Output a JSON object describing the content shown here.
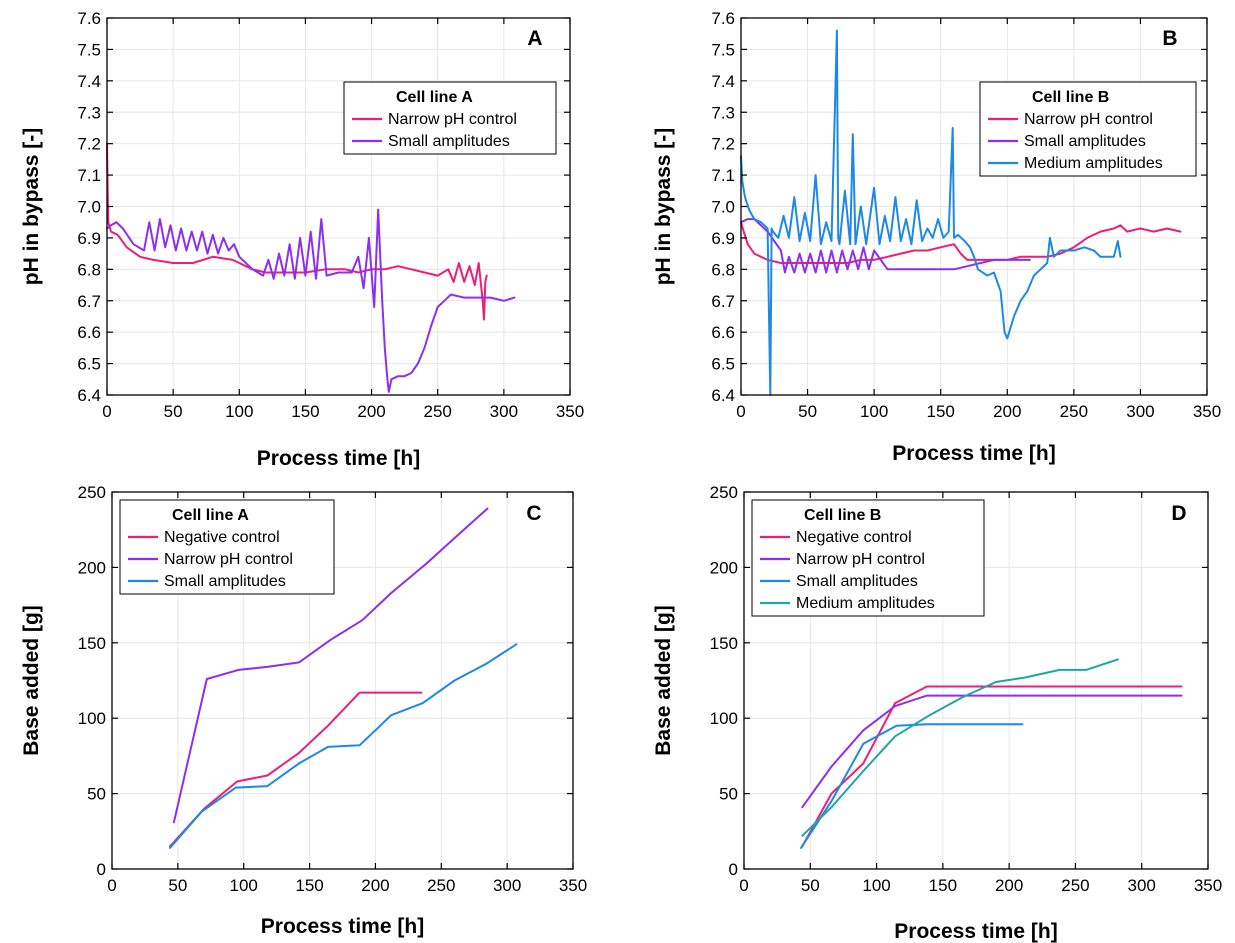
{
  "colors": {
    "pink": "#ec1e77",
    "purple": "#8c2ff0",
    "blue": "#1e88e5",
    "teal": "#1aa8a0"
  },
  "chart_data": [
    {
      "id": "A",
      "type": "line",
      "panel_label": "A",
      "xlabel": "Process time [h]",
      "ylabel": "pH in bypass [-]",
      "xlim": [
        0,
        350
      ],
      "ylim": [
        6.4,
        7.6
      ],
      "xticks": [
        0,
        50,
        100,
        150,
        200,
        250,
        300,
        350
      ],
      "yticks": [
        6.4,
        6.5,
        6.6,
        6.7,
        6.8,
        6.9,
        7.0,
        7.1,
        7.2,
        7.3,
        7.4,
        7.5,
        7.6
      ],
      "ytick_decimals": 1,
      "grid": true,
      "legend_title": "Cell line A",
      "legend_position": "upper-right",
      "series": [
        {
          "name": "Narrow pH control",
          "color": "#ec1e77",
          "x": [
            0,
            0.5,
            1,
            3,
            8,
            15,
            25,
            35,
            50,
            65,
            80,
            95,
            110,
            120,
            135,
            150,
            165,
            180,
            190,
            200,
            210,
            220,
            230,
            240,
            250,
            258,
            262,
            266,
            270,
            274,
            278,
            281,
            284,
            285,
            286,
            287
          ],
          "y": [
            7.2,
            7.05,
            6.95,
            6.92,
            6.91,
            6.87,
            6.84,
            6.83,
            6.82,
            6.82,
            6.84,
            6.83,
            6.8,
            6.79,
            6.79,
            6.79,
            6.8,
            6.8,
            6.79,
            6.8,
            6.8,
            6.81,
            6.8,
            6.79,
            6.78,
            6.8,
            6.76,
            6.82,
            6.76,
            6.81,
            6.75,
            6.82,
            6.7,
            6.64,
            6.76,
            6.78
          ]
        },
        {
          "name": "Small amplitudes",
          "color": "#8c2ff0",
          "x": [
            0,
            3,
            7,
            12,
            20,
            28,
            32,
            36,
            40,
            44,
            48,
            52,
            56,
            60,
            64,
            68,
            72,
            76,
            80,
            84,
            88,
            92,
            96,
            100,
            110,
            118,
            122,
            126,
            130,
            134,
            138,
            142,
            146,
            150,
            154,
            158,
            162,
            166,
            175,
            185,
            190,
            194,
            198,
            202,
            205,
            208,
            210,
            212,
            213,
            215,
            220,
            225,
            230,
            235,
            240,
            245,
            250,
            255,
            260,
            270,
            280,
            290,
            300,
            308
          ],
          "y": [
            6.93,
            6.94,
            6.95,
            6.93,
            6.88,
            6.86,
            6.95,
            6.86,
            6.96,
            6.87,
            6.94,
            6.86,
            6.93,
            6.86,
            6.92,
            6.86,
            6.92,
            6.85,
            6.91,
            6.85,
            6.9,
            6.86,
            6.88,
            6.84,
            6.8,
            6.78,
            6.83,
            6.77,
            6.85,
            6.78,
            6.88,
            6.77,
            6.9,
            6.78,
            6.92,
            6.77,
            6.96,
            6.78,
            6.79,
            6.79,
            6.84,
            6.74,
            6.9,
            6.68,
            6.99,
            6.7,
            6.55,
            6.45,
            6.41,
            6.45,
            6.46,
            6.46,
            6.47,
            6.5,
            6.55,
            6.62,
            6.68,
            6.7,
            6.72,
            6.71,
            6.71,
            6.71,
            6.7,
            6.71
          ]
        }
      ]
    },
    {
      "id": "B",
      "type": "line",
      "panel_label": "B",
      "xlabel": "Process time [h]",
      "ylabel": "pH in bypass [-]",
      "xlim": [
        0,
        350
      ],
      "ylim": [
        6.4,
        7.6
      ],
      "xticks": [
        0,
        50,
        100,
        150,
        200,
        250,
        300,
        350
      ],
      "yticks": [
        6.4,
        6.5,
        6.6,
        6.7,
        6.8,
        6.9,
        7.0,
        7.1,
        7.2,
        7.3,
        7.4,
        7.5,
        7.6
      ],
      "ytick_decimals": 1,
      "grid": true,
      "legend_title": "Cell line B",
      "legend_position": "upper-right",
      "series": [
        {
          "name": "Narrow pH control",
          "color": "#ec1e77",
          "x": [
            0,
            2,
            5,
            10,
            20,
            30,
            40,
            50,
            60,
            70,
            80,
            90,
            100,
            110,
            120,
            130,
            140,
            150,
            160,
            165,
            170,
            180,
            190,
            200,
            210,
            220,
            230,
            240,
            250,
            260,
            270,
            280,
            285,
            290,
            300,
            310,
            320,
            330
          ],
          "y": [
            6.95,
            6.92,
            6.88,
            6.85,
            6.83,
            6.82,
            6.82,
            6.82,
            6.82,
            6.82,
            6.82,
            6.83,
            6.83,
            6.84,
            6.85,
            6.86,
            6.86,
            6.87,
            6.88,
            6.85,
            6.83,
            6.83,
            6.83,
            6.83,
            6.84,
            6.84,
            6.84,
            6.85,
            6.87,
            6.9,
            6.92,
            6.93,
            6.94,
            6.92,
            6.93,
            6.92,
            6.93,
            6.92
          ]
        },
        {
          "name": "Small amplitudes",
          "color": "#8c2ff0",
          "x": [
            0,
            5,
            10,
            20,
            30,
            33,
            36,
            40,
            44,
            48,
            52,
            56,
            60,
            64,
            68,
            72,
            76,
            80,
            84,
            88,
            92,
            96,
            100,
            110,
            120,
            130,
            140,
            150,
            160,
            170,
            180,
            190,
            200,
            210,
            217
          ],
          "y": [
            6.95,
            6.96,
            6.96,
            6.92,
            6.86,
            6.79,
            6.84,
            6.79,
            6.85,
            6.79,
            6.85,
            6.79,
            6.86,
            6.79,
            6.86,
            6.79,
            6.86,
            6.8,
            6.86,
            6.8,
            6.87,
            6.8,
            6.86,
            6.8,
            6.8,
            6.8,
            6.8,
            6.8,
            6.8,
            6.81,
            6.82,
            6.83,
            6.83,
            6.83,
            6.83
          ]
        },
        {
          "name": "Medium amplitudes",
          "color": "#1e88e5",
          "x": [
            0,
            1,
            3,
            6,
            10,
            15,
            20,
            22,
            23,
            24,
            28,
            32,
            36,
            40,
            44,
            48,
            52,
            56,
            60,
            64,
            68,
            72,
            73,
            74,
            78,
            82,
            84,
            86,
            90,
            94,
            100,
            104,
            108,
            112,
            116,
            120,
            124,
            128,
            132,
            136,
            140,
            144,
            148,
            152,
            156,
            159,
            160,
            163,
            168,
            172,
            175,
            178,
            185,
            190,
            195,
            198,
            200,
            205,
            210,
            215,
            220,
            225,
            230,
            232,
            235,
            240,
            250,
            258,
            265,
            270,
            275,
            280,
            283,
            285
          ],
          "y": [
            7.16,
            7.08,
            7.03,
            6.99,
            6.96,
            6.95,
            6.93,
            6.4,
            6.93,
            6.92,
            6.9,
            6.97,
            6.9,
            7.03,
            6.89,
            6.98,
            6.89,
            7.1,
            6.88,
            6.95,
            6.89,
            7.56,
            6.9,
            6.88,
            7.05,
            6.88,
            7.23,
            6.88,
            7.0,
            6.88,
            7.06,
            6.88,
            6.97,
            6.89,
            7.03,
            6.89,
            6.96,
            6.88,
            7.02,
            6.89,
            6.93,
            6.9,
            6.96,
            6.9,
            6.92,
            7.25,
            6.9,
            6.91,
            6.89,
            6.87,
            6.84,
            6.8,
            6.78,
            6.79,
            6.73,
            6.6,
            6.58,
            6.65,
            6.7,
            6.73,
            6.78,
            6.8,
            6.82,
            6.9,
            6.84,
            6.86,
            6.86,
            6.87,
            6.86,
            6.84,
            6.84,
            6.84,
            6.89,
            6.84
          ]
        }
      ]
    },
    {
      "id": "C",
      "type": "line",
      "panel_label": "C",
      "xlabel": "Process time [h]",
      "ylabel": "Base added [g]",
      "xlim": [
        0,
        350
      ],
      "ylim": [
        0,
        250
      ],
      "xticks": [
        0,
        50,
        100,
        150,
        200,
        250,
        300,
        350
      ],
      "yticks": [
        0,
        50,
        100,
        150,
        200,
        250
      ],
      "ytick_decimals": 0,
      "grid": true,
      "legend_title": "Cell line A",
      "legend_position": "upper-left",
      "series": [
        {
          "name": "Negative control",
          "color": "#ec1e77",
          "x": [
            44,
            70,
            95,
            118,
            142,
            164,
            188,
            210,
            235
          ],
          "y": [
            15,
            40,
            58,
            62,
            77,
            95,
            117,
            117,
            117
          ]
        },
        {
          "name": "Narrow pH control",
          "color": "#8c2ff0",
          "x": [
            47,
            72,
            96,
            118,
            142,
            166,
            190,
            212,
            238,
            262,
            285
          ],
          "y": [
            31,
            126,
            132,
            134,
            137,
            152,
            165,
            183,
            202,
            221,
            239
          ]
        },
        {
          "name": "Small amplitudes",
          "color": "#1e88e5",
          "x": [
            44,
            68,
            94,
            118,
            142,
            164,
            188,
            212,
            236,
            260,
            284,
            307
          ],
          "y": [
            14,
            38,
            54,
            55,
            70,
            81,
            82,
            102,
            110,
            125,
            136,
            149
          ]
        }
      ]
    },
    {
      "id": "D",
      "type": "line",
      "panel_label": "D",
      "xlabel": "Process time [h]",
      "ylabel": "Base added [g]",
      "xlim": [
        0,
        350
      ],
      "ylim": [
        0,
        250
      ],
      "xticks": [
        0,
        50,
        100,
        150,
        200,
        250,
        300,
        350
      ],
      "yticks": [
        0,
        50,
        100,
        150,
        200,
        250
      ],
      "ytick_decimals": 0,
      "grid": true,
      "legend_title": "Cell line B",
      "legend_position": "upper-left",
      "series": [
        {
          "name": "Negative control",
          "color": "#ec1e77",
          "x": [
            44,
            66,
            90,
            114,
            138,
            160,
            185,
            210,
            235,
            260,
            285,
            310,
            330
          ],
          "y": [
            15,
            50,
            70,
            110,
            121,
            121,
            121,
            121,
            121,
            121,
            121,
            121,
            121
          ]
        },
        {
          "name": "Narrow pH control",
          "color": "#8c2ff0",
          "x": [
            44,
            66,
            90,
            114,
            138,
            160,
            185,
            210,
            235,
            260,
            285,
            310,
            330
          ],
          "y": [
            41,
            68,
            92,
            108,
            115,
            115,
            115,
            115,
            115,
            115,
            115,
            115,
            115
          ]
        },
        {
          "name": "Small amplitudes",
          "color": "#1e88e5",
          "x": [
            43,
            66,
            90,
            115,
            138,
            160,
            185,
            210
          ],
          "y": [
            14,
            45,
            83,
            95,
            96,
            96,
            96,
            96
          ]
        },
        {
          "name": "Medium amplitudes",
          "color": "#1aa8a0",
          "x": [
            44,
            66,
            90,
            114,
            140,
            165,
            190,
            212,
            238,
            258,
            282
          ],
          "y": [
            22,
            41,
            65,
            88,
            102,
            114,
            124,
            127,
            132,
            132,
            139
          ]
        }
      ]
    }
  ]
}
